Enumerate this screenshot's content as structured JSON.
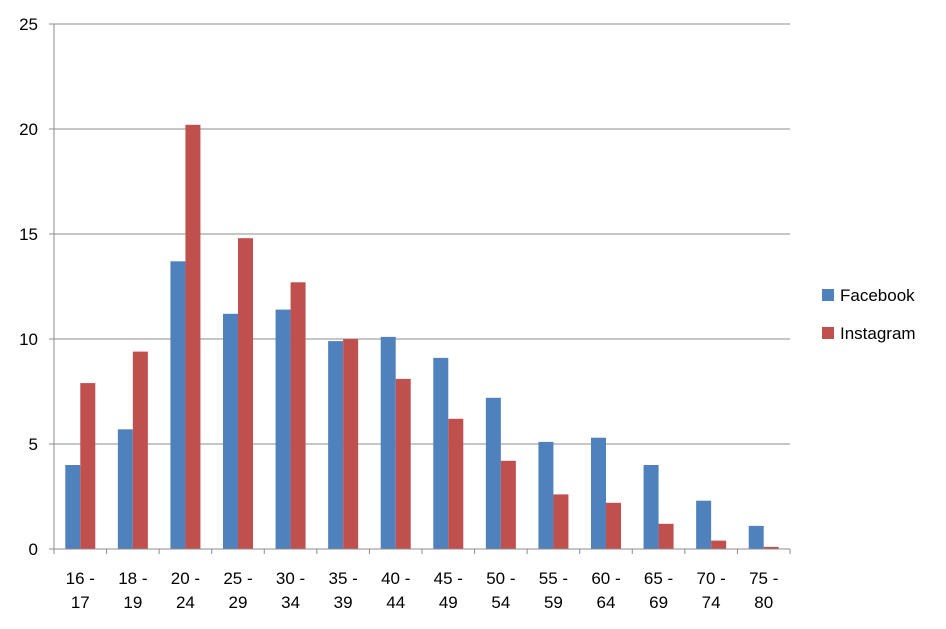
{
  "chart_data": {
    "type": "bar",
    "categories": [
      [
        "16 -",
        "17"
      ],
      [
        "18 -",
        "19"
      ],
      [
        "20 -",
        "24"
      ],
      [
        "25 -",
        "29"
      ],
      [
        "30 -",
        "34"
      ],
      [
        "35 -",
        "39"
      ],
      [
        "40 -",
        "44"
      ],
      [
        "45 -",
        "49"
      ],
      [
        "50 -",
        "54"
      ],
      [
        "55 -",
        "59"
      ],
      [
        "60 -",
        "64"
      ],
      [
        "65 -",
        "69"
      ],
      [
        "70 -",
        "74"
      ],
      [
        "75 -",
        "80"
      ]
    ],
    "series": [
      {
        "name": "Facebook",
        "color": "#4F81BD",
        "values": [
          4.0,
          5.7,
          13.7,
          11.2,
          11.4,
          9.9,
          10.1,
          9.1,
          7.2,
          5.1,
          5.3,
          4.0,
          2.3,
          1.1
        ]
      },
      {
        "name": "Instagram",
        "color": "#C0504D",
        "values": [
          7.9,
          9.4,
          20.2,
          14.8,
          12.7,
          10.0,
          8.1,
          6.2,
          4.2,
          2.6,
          2.2,
          1.2,
          0.4,
          0.1
        ]
      }
    ],
    "ylim": [
      0,
      25
    ],
    "yticks": [
      0,
      5,
      10,
      15,
      20,
      25
    ],
    "grid": true,
    "legend": "right"
  }
}
